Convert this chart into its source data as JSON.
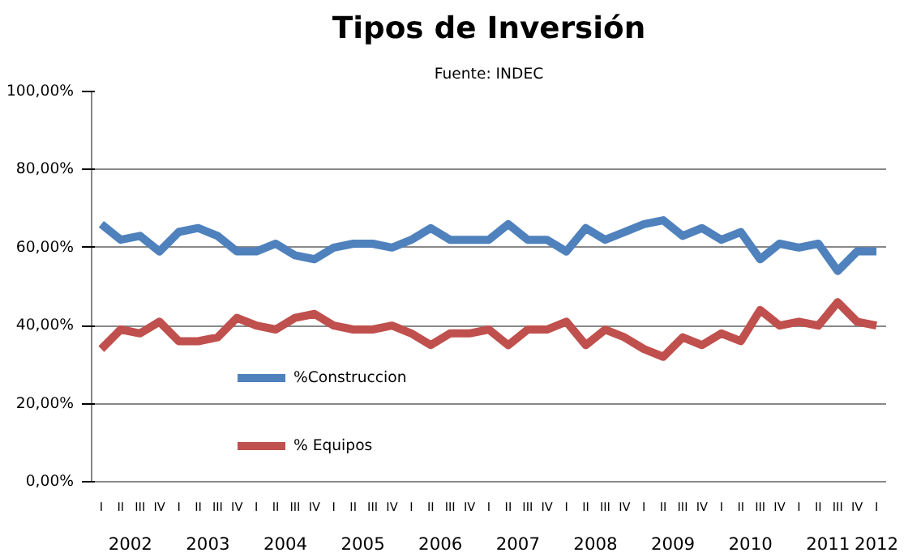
{
  "chart_data": {
    "type": "line",
    "title": "Tipos de Inversión",
    "subtitle": "Fuente: INDEC",
    "categories": [
      "I",
      "II",
      "III",
      "IV",
      "I",
      "II",
      "III",
      "IV",
      "I",
      "II",
      "III",
      "IV",
      "I",
      "II",
      "III",
      "IV",
      "I",
      "II",
      "III",
      "IV",
      "I",
      "II",
      "III",
      "IV",
      "I",
      "II",
      "III",
      "IV",
      "I",
      "II",
      "III",
      "IV",
      "I",
      "II",
      "III",
      "IV",
      "I",
      "II",
      "III",
      "IV",
      "I"
    ],
    "annotations": [
      "2002",
      "2003",
      "2004",
      "2005",
      "2006",
      "2007",
      "2008",
      "2009",
      "2010",
      "2011",
      "2012"
    ],
    "series": [
      {
        "name": "%Construccion",
        "color": "#4f81bd",
        "values": [
          66,
          62,
          63,
          59,
          64,
          65,
          63,
          59,
          59,
          61,
          58,
          57,
          60,
          61,
          61,
          60,
          62,
          65,
          62,
          62,
          62,
          66,
          62,
          62,
          59,
          65,
          62,
          64,
          66,
          67,
          63,
          65,
          62,
          64,
          57,
          61,
          60,
          61,
          54,
          59,
          59
        ]
      },
      {
        "name": "% Equipos",
        "color": "#c0504d",
        "values": [
          34,
          39,
          38,
          41,
          36,
          36,
          37,
          42,
          40,
          39,
          42,
          43,
          40,
          39,
          39,
          40,
          38,
          35,
          38,
          38,
          39,
          35,
          39,
          39,
          41,
          35,
          39,
          37,
          34,
          32,
          37,
          35,
          38,
          36,
          44,
          40,
          41,
          40,
          46,
          41,
          40
        ]
      }
    ],
    "ylim": [
      0,
      100
    ],
    "yticks": [
      {
        "value": 0,
        "label": "0,00%"
      },
      {
        "value": 20,
        "label": "20,00%"
      },
      {
        "value": 40,
        "label": "40,00%"
      },
      {
        "value": 60,
        "label": "60,00%"
      },
      {
        "value": 80,
        "label": "80,00%"
      },
      {
        "value": 100,
        "label": "100,00%"
      }
    ],
    "grid": "y",
    "legend": "bottom left",
    "marker": "none",
    "line_style": "solid"
  }
}
